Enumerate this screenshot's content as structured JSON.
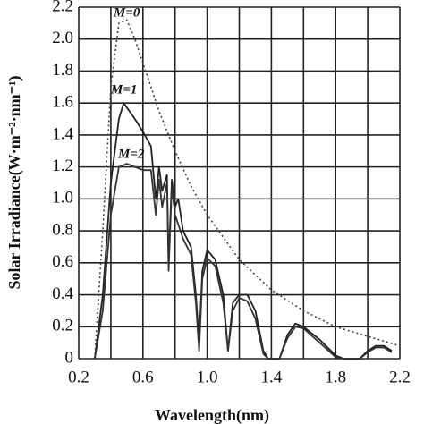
{
  "chart_data": {
    "type": "line",
    "x_label": "Wavelength(nm)",
    "y_label": "Solar Irradiance(W·m⁻²·nm⁻¹)",
    "xlim": [
      0.2,
      2.2
    ],
    "ylim": [
      0,
      2.2
    ],
    "xticks": [
      0.2,
      0.6,
      {
        "value": 1,
        "label": "1.0"
      },
      1.4,
      1.8,
      2.2
    ],
    "xgrid_minor": [
      0.4,
      0.8,
      1.2,
      1.6,
      2.0
    ],
    "yticks": [
      0,
      0.2,
      0.4,
      0.6,
      0.8,
      {
        "value": 1,
        "label": "1.0"
      },
      1.2,
      1.4,
      1.6,
      1.8,
      {
        "value": 2,
        "label": "2.0"
      },
      2.2
    ],
    "grid": true,
    "series": [
      {
        "name": "M=0",
        "color": "#444444",
        "linestyle": "dotted",
        "x": [
          0.3,
          0.35,
          0.4,
          0.45,
          0.5,
          0.55,
          0.6,
          0.7,
          0.8,
          0.9,
          1.0,
          1.2,
          1.4,
          1.6,
          1.8,
          2.0,
          2.2
        ],
        "values": [
          0,
          0.8,
          1.7,
          2.1,
          2.12,
          2.0,
          1.85,
          1.55,
          1.3,
          1.08,
          0.9,
          0.62,
          0.43,
          0.3,
          0.2,
          0.14,
          0.08
        ]
      },
      {
        "name": "M=1",
        "color": "#222222",
        "linestyle": "solid",
        "x": [
          0.3,
          0.35,
          0.4,
          0.45,
          0.48,
          0.55,
          0.6,
          0.65,
          0.68,
          0.7,
          0.72,
          0.75,
          0.76,
          0.78,
          0.8,
          0.82,
          0.85,
          0.9,
          0.93,
          0.95,
          0.97,
          1.0,
          1.05,
          1.1,
          1.13,
          1.16,
          1.2,
          1.25,
          1.3,
          1.35,
          1.38,
          1.45,
          1.5,
          1.55,
          1.6,
          1.7,
          1.8,
          1.85,
          1.95,
          2.0,
          2.05,
          2.1,
          2.15
        ],
        "values": [
          0,
          0.4,
          1.1,
          1.5,
          1.6,
          1.5,
          1.42,
          1.33,
          1.0,
          1.2,
          1.05,
          1.15,
          0.6,
          1.12,
          0.95,
          1.0,
          0.8,
          0.7,
          0.4,
          0.1,
          0.55,
          0.68,
          0.62,
          0.4,
          0.05,
          0.35,
          0.4,
          0.4,
          0.3,
          0.05,
          0,
          0,
          0.15,
          0.22,
          0.2,
          0.12,
          0.02,
          0,
          0,
          0.05,
          0.08,
          0.08,
          0.05
        ]
      },
      {
        "name": "M=2",
        "color": "#333333",
        "linestyle": "solid",
        "x": [
          0.3,
          0.35,
          0.4,
          0.45,
          0.5,
          0.55,
          0.6,
          0.65,
          0.68,
          0.7,
          0.72,
          0.75,
          0.76,
          0.78,
          0.8,
          0.85,
          0.9,
          0.93,
          0.95,
          0.97,
          1.0,
          1.05,
          1.1,
          1.13,
          1.16,
          1.2,
          1.25,
          1.3,
          1.35,
          1.38,
          1.45,
          1.5,
          1.55,
          1.6,
          1.7,
          1.8,
          1.85,
          1.95,
          2.0,
          2.05,
          2.1,
          2.15
        ],
        "values": [
          0,
          0.3,
          0.9,
          1.2,
          1.22,
          1.2,
          1.18,
          1.18,
          0.9,
          1.12,
          0.95,
          1.1,
          0.55,
          1.08,
          0.9,
          0.75,
          0.65,
          0.35,
          0.05,
          0.5,
          0.63,
          0.58,
          0.35,
          0.05,
          0.3,
          0.38,
          0.36,
          0.25,
          0.03,
          0,
          0,
          0.13,
          0.2,
          0.19,
          0.1,
          0.01,
          0,
          0,
          0.04,
          0.07,
          0.07,
          0.04
        ]
      }
    ]
  }
}
